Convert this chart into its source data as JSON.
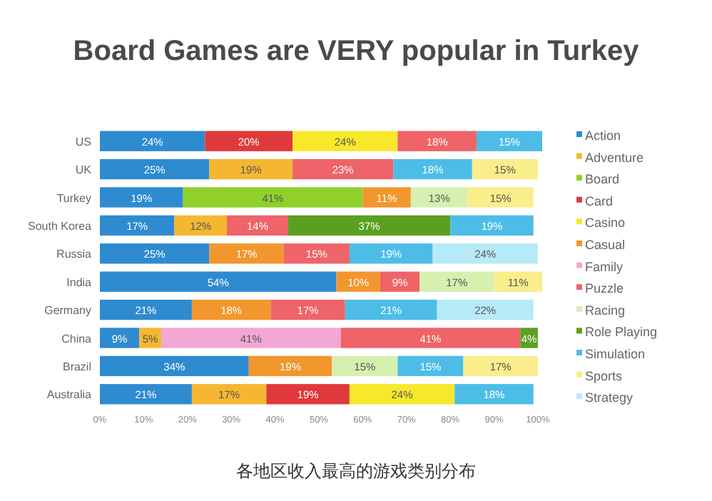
{
  "chart_data": {
    "type": "bar",
    "orientation": "horizontal",
    "stacked": true,
    "title": "Board Games are VERY popular in Turkey",
    "categories": [
      "US",
      "UK",
      "Turkey",
      "South Korea",
      "Russia",
      "India",
      "Germany",
      "China",
      "Brazil",
      "Australia"
    ],
    "series": [
      {
        "name": "Action",
        "color": "#2e8bd0",
        "values": [
          24,
          25,
          19,
          17,
          25,
          54,
          21,
          9,
          34,
          21
        ],
        "value_labels": [
          "24%",
          "25%",
          "19%",
          "17%",
          "25%",
          "54%",
          "21%",
          "9%",
          "34%",
          "21%"
        ]
      },
      {
        "name": "Adventure",
        "color": "#f5b731",
        "values": [
          null,
          19,
          null,
          12,
          null,
          null,
          null,
          5,
          null,
          17
        ],
        "value_labels": [
          null,
          "19%",
          null,
          "12%",
          null,
          null,
          null,
          "5%",
          null,
          "17%"
        ]
      },
      {
        "name": "Board",
        "color": "#8fd12a",
        "values": [
          null,
          null,
          41,
          null,
          null,
          null,
          null,
          null,
          null,
          null
        ],
        "value_labels": [
          null,
          null,
          "41%",
          null,
          null,
          null,
          null,
          null,
          null,
          null
        ]
      },
      {
        "name": "Card",
        "color": "#e0393b",
        "values": [
          20,
          null,
          null,
          null,
          null,
          null,
          null,
          null,
          null,
          19
        ],
        "value_labels": [
          "20%",
          null,
          null,
          null,
          null,
          null,
          null,
          null,
          null,
          "19%"
        ]
      },
      {
        "name": "Casino",
        "color": "#f7e82b",
        "values": [
          24,
          null,
          null,
          null,
          null,
          null,
          null,
          null,
          null,
          24
        ],
        "value_labels": [
          "24%",
          null,
          null,
          null,
          null,
          null,
          null,
          null,
          null,
          "24%"
        ]
      },
      {
        "name": "Casual",
        "color": "#f2962e",
        "values": [
          null,
          null,
          11,
          null,
          17,
          10,
          18,
          null,
          19,
          null
        ],
        "value_labels": [
          null,
          null,
          "11%",
          null,
          "17%",
          "10%",
          "18%",
          null,
          "19%",
          null
        ]
      },
      {
        "name": "Family",
        "color": "#f2a7d3",
        "values": [
          null,
          null,
          null,
          null,
          null,
          null,
          null,
          41,
          null,
          null
        ],
        "value_labels": [
          null,
          null,
          null,
          null,
          null,
          null,
          null,
          "41%",
          null,
          null
        ]
      },
      {
        "name": "Puzzle",
        "color": "#ee6468",
        "values": [
          18,
          23,
          null,
          14,
          15,
          9,
          17,
          41,
          null,
          null
        ],
        "value_labels": [
          "18%",
          "23%",
          null,
          "14%",
          "15%",
          "9%",
          "17%",
          "41%",
          null,
          null
        ]
      },
      {
        "name": "Racing",
        "color": "#d6f0b0",
        "values": [
          null,
          null,
          13,
          null,
          null,
          17,
          null,
          null,
          15,
          null
        ],
        "value_labels": [
          null,
          null,
          "13%",
          null,
          null,
          "17%",
          null,
          null,
          "15%",
          null
        ]
      },
      {
        "name": "Role Playing",
        "color": "#5aa020",
        "values": [
          null,
          null,
          null,
          37,
          null,
          null,
          null,
          4,
          null,
          null
        ],
        "value_labels": [
          null,
          null,
          null,
          "37%",
          null,
          null,
          null,
          "4%",
          null,
          null
        ]
      },
      {
        "name": "Simulation",
        "color": "#4dbde8",
        "values": [
          15,
          18,
          null,
          19,
          19,
          null,
          21,
          null,
          15,
          18
        ],
        "value_labels": [
          "15%",
          "18%",
          null,
          "19%",
          "19%",
          null,
          "21%",
          null,
          "15%",
          "18%"
        ]
      },
      {
        "name": "Sports",
        "color": "#faed8c",
        "values": [
          null,
          15,
          15,
          null,
          null,
          11,
          null,
          null,
          17,
          null
        ],
        "value_labels": [
          null,
          "15%",
          "15%",
          null,
          null,
          "11%",
          null,
          null,
          "17%",
          null
        ]
      },
      {
        "name": "Strategy",
        "color": "#b7eaf7",
        "values": [
          null,
          null,
          null,
          null,
          24,
          null,
          22,
          null,
          null,
          null
        ],
        "value_labels": [
          null,
          null,
          null,
          null,
          "24%",
          null,
          "22%",
          null,
          null,
          null
        ]
      }
    ],
    "xlim": [
      0,
      101
    ],
    "xticks": [
      {
        "value": 0,
        "label": "0%"
      },
      {
        "value": 10,
        "label": "10%"
      },
      {
        "value": 20,
        "label": "20%"
      },
      {
        "value": 30,
        "label": "30%"
      },
      {
        "value": 40,
        "label": "40%"
      },
      {
        "value": 50,
        "label": "50%"
      },
      {
        "value": 60,
        "label": "60%"
      },
      {
        "value": 70,
        "label": "70%"
      },
      {
        "value": 80,
        "label": "80%"
      },
      {
        "value": 90,
        "label": "90%"
      },
      {
        "value": 100,
        "label": "100%"
      }
    ],
    "grid": false,
    "legend": "right",
    "marker": "square",
    "annotations": [
      "各地区收入最高的游戏类别分布"
    ]
  }
}
